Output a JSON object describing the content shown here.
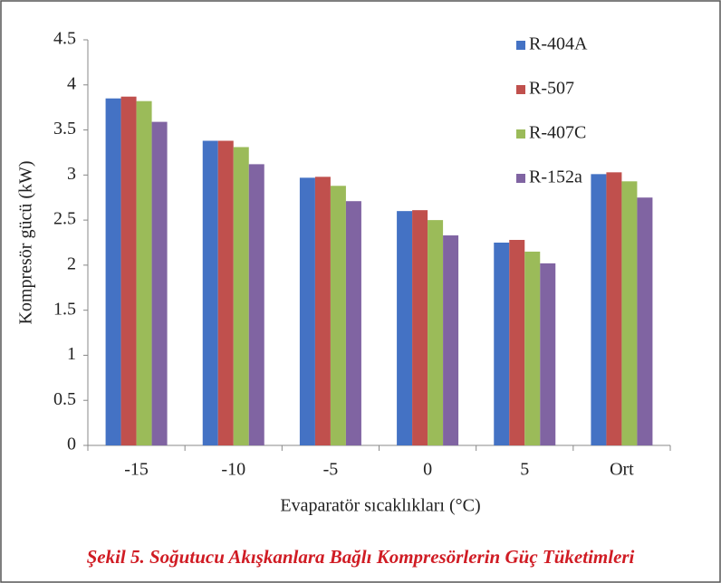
{
  "chart_data": {
    "type": "bar",
    "ylabel": "Kompresör gücü (kW)",
    "xlabel": "Evaparatör sıcaklıkları (°C)",
    "caption": "Şekil 5. Soğutucu Akışkanlara Bağlı Kompresörlerin Güç Tüketimleri",
    "categories": [
      "-15",
      "-10",
      "-5",
      "0",
      "5",
      "Ort"
    ],
    "series": [
      {
        "name": "R-404A",
        "color": "#4472c4",
        "values": [
          3.85,
          3.38,
          2.97,
          2.6,
          2.25,
          3.01
        ]
      },
      {
        "name": "R-507",
        "color": "#c0504d",
        "values": [
          3.87,
          3.38,
          2.98,
          2.61,
          2.28,
          3.03
        ]
      },
      {
        "name": "R-407C",
        "color": "#9bbb59",
        "values": [
          3.82,
          3.31,
          2.88,
          2.5,
          2.15,
          2.93
        ]
      },
      {
        "name": "R-152a",
        "color": "#8064a2",
        "values": [
          3.59,
          3.12,
          2.71,
          2.33,
          2.02,
          2.75
        ]
      }
    ],
    "ylim": [
      0,
      4.5
    ],
    "yticks": [
      0,
      0.5,
      1,
      1.5,
      2,
      2.5,
      3,
      3.5,
      4,
      4.5
    ],
    "legend": "top-right"
  }
}
